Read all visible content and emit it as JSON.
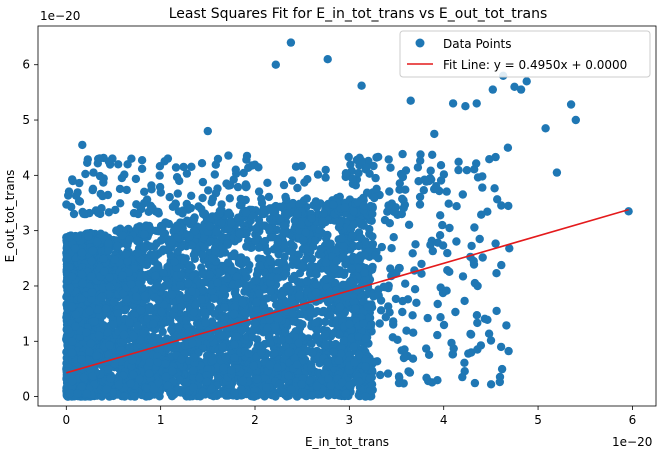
{
  "chart_data": {
    "type": "scatter",
    "title": "Least Squares Fit for E_in_tot_trans vs E_out_tot_trans",
    "xlabel": "E_in_tot_trans",
    "ylabel": "E_out_tot_trans",
    "x_offset_text": "1e−20",
    "y_offset_text": "1e−20",
    "xlim": [
      -0.3,
      6.25
    ],
    "ylim": [
      -0.17,
      6.7
    ],
    "xticks": [
      0,
      1,
      2,
      3,
      4,
      5,
      6
    ],
    "yticks": [
      0,
      1,
      2,
      3,
      4,
      5,
      6
    ],
    "xtick_labels": [
      "0",
      "1",
      "2",
      "3",
      "4",
      "5",
      "6"
    ],
    "ytick_labels": [
      "0",
      "1",
      "2",
      "3",
      "4",
      "5",
      "6"
    ],
    "grid": false,
    "legend_position": "top-right",
    "series": [
      {
        "name": "Data Points",
        "kind": "scatter",
        "color": "#1f77b4",
        "note": "dense cloud of many points; x mostly 0-3.2, y mostly 0-3.5 (units of 1e-20)",
        "outliers_x": [
          2.38,
          2.22,
          2.77,
          3.13,
          4.23,
          4.63,
          4.75,
          4.82,
          4.88,
          5.08,
          5.35,
          5.4,
          5.2,
          5.96,
          0.17,
          1.5,
          4.52,
          4.35,
          4.1,
          3.65,
          0.45,
          0.55,
          0.65,
          3.9,
          4.68
        ],
        "outliers_y": [
          6.4,
          6.0,
          6.1,
          5.62,
          5.25,
          5.8,
          5.6,
          5.55,
          5.7,
          4.85,
          5.28,
          5.0,
          4.05,
          3.35,
          4.55,
          4.8,
          5.55,
          5.3,
          5.3,
          5.35,
          4.25,
          4.2,
          4.2,
          4.75,
          4.5
        ]
      },
      {
        "name": "Fit Line: y = 0.4950x + 0.0000",
        "kind": "line",
        "color": "#e41a1c",
        "x": [
          0.0,
          5.96
        ],
        "y": [
          0.43,
          3.38
        ]
      }
    ]
  }
}
